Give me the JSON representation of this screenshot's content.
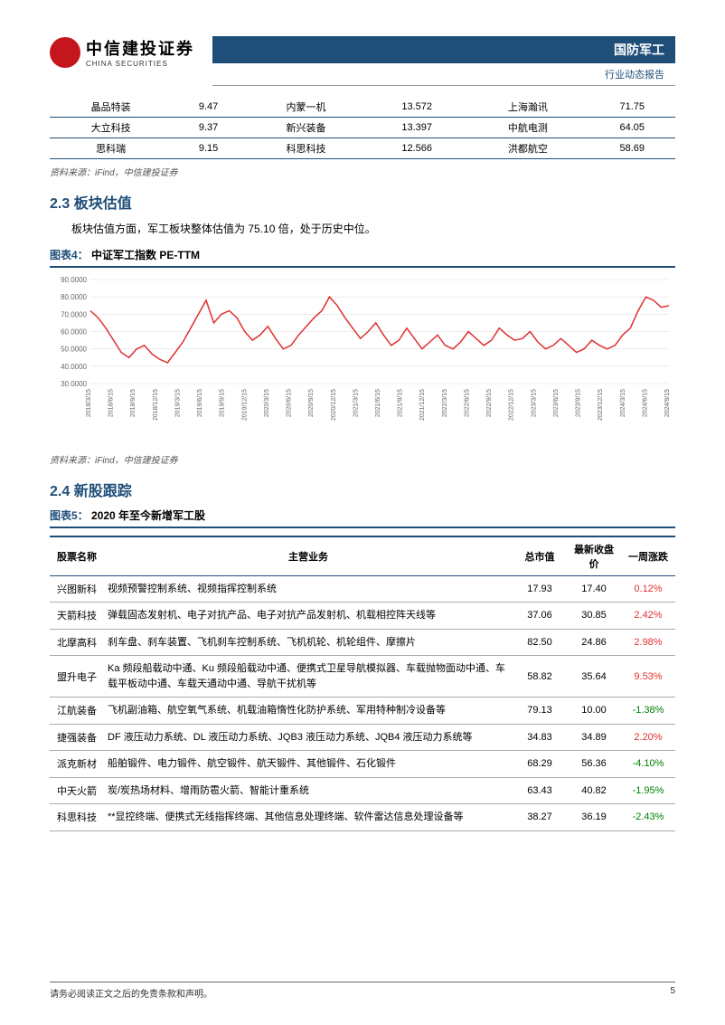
{
  "header": {
    "logo_cn": "中信建投证券",
    "logo_en": "CHINA SECURITIES",
    "logo_badge": "CITIC",
    "category": "国防军工",
    "subtitle": "行业动态报告"
  },
  "table_top": {
    "rows": [
      [
        "晶品特装",
        "9.47",
        "内蒙一机",
        "13.572",
        "上海瀚讯",
        "71.75"
      ],
      [
        "大立科技",
        "9.37",
        "新兴装备",
        "13.397",
        "中航电测",
        "64.05"
      ],
      [
        "思科瑞",
        "9.15",
        "科思科技",
        "12.566",
        "洪都航空",
        "58.69"
      ]
    ],
    "source": "资料来源：iFind，中信建投证券"
  },
  "section_23": {
    "heading": "2.3 板块估值",
    "paragraph": "板块估值方面，军工板块整体估值为 75.10 倍，处于历史中位。"
  },
  "chart4": {
    "title_prefix": "图表4：",
    "title": "中证军工指数 PE-TTM",
    "type": "line",
    "line_color": "#e03030",
    "line_width": 1.5,
    "background_color": "#ffffff",
    "grid_color": "#d9d9d9",
    "yaxis": {
      "min": 30,
      "max": 90,
      "ticks": [
        30,
        40,
        50,
        60,
        70,
        80,
        90
      ],
      "fontsize": 8,
      "color": "#666666"
    },
    "xaxis": {
      "labels": [
        "2018/3/15",
        "2018/6/15",
        "2018/9/15",
        "2018/12/15",
        "2019/3/15",
        "2019/6/15",
        "2019/9/15",
        "2019/12/15",
        "2020/3/15",
        "2020/6/15",
        "2020/9/15",
        "2020/12/15",
        "2021/3/15",
        "2021/6/15",
        "2021/9/15",
        "2021/12/15",
        "2022/3/15",
        "2022/6/15",
        "2022/9/15",
        "2022/12/15",
        "2023/3/15",
        "2023/6/15",
        "2023/9/15",
        "2023/12/15",
        "2024/3/15",
        "2024/6/15",
        "2024/9/15"
      ],
      "fontsize": 7,
      "color": "#666666",
      "rotation": -90
    },
    "values": [
      72,
      68,
      62,
      55,
      48,
      45,
      50,
      52,
      47,
      44,
      42,
      48,
      54,
      62,
      70,
      78,
      65,
      70,
      72,
      68,
      60,
      55,
      58,
      63,
      56,
      50,
      52,
      58,
      63,
      68,
      72,
      80,
      75,
      68,
      62,
      56,
      60,
      65,
      58,
      52,
      55,
      62,
      56,
      50,
      54,
      58,
      52,
      50,
      54,
      60,
      56,
      52,
      55,
      62,
      58,
      55,
      56,
      60,
      54,
      50,
      52,
      56,
      52,
      48,
      50,
      55,
      52,
      50,
      52,
      58,
      62,
      72,
      80,
      78,
      74,
      75
    ],
    "source": "资料来源：iFind，中信建投证券"
  },
  "section_24": {
    "heading": "2.4 新股跟踪"
  },
  "chart5": {
    "title_prefix": "图表5：",
    "title": "2020 年至今新增军工股",
    "columns": [
      "股票名称",
      "主营业务",
      "总市值",
      "最新收盘价",
      "一周涨跌"
    ],
    "col_widths": [
      "60px",
      "auto",
      "60px",
      "70px",
      "60px"
    ],
    "rows": [
      {
        "name": "兴图新科",
        "biz": "视频预警控制系统、视频指挥控制系统",
        "cap": "17.93",
        "close": "17.40",
        "chg": "0.12%",
        "dir": "pos"
      },
      {
        "name": "天箭科技",
        "biz": "弹载固态发射机、电子对抗产品、电子对抗产品发射机、机载相控阵天线等",
        "cap": "37.06",
        "close": "30.85",
        "chg": "2.42%",
        "dir": "pos"
      },
      {
        "name": "北摩高科",
        "biz": "刹车盘、刹车装置、飞机刹车控制系统、飞机机轮、机轮组件、摩擦片",
        "cap": "82.50",
        "close": "24.86",
        "chg": "2.98%",
        "dir": "pos"
      },
      {
        "name": "盟升电子",
        "biz": "Ka 频段船载动中通、Ku 频段船载动中通、便携式卫星导航模拟器、车载抛物面动中通、车载平板动中通、车载天通动中通、导航干扰机等",
        "cap": "58.82",
        "close": "35.64",
        "chg": "9.53%",
        "dir": "pos"
      },
      {
        "name": "江航装备",
        "biz": "飞机副油箱、航空氧气系统、机载油箱惰性化防护系统、军用特种制冷设备等",
        "cap": "79.13",
        "close": "10.00",
        "chg": "-1.38%",
        "dir": "neg"
      },
      {
        "name": "捷强装备",
        "biz": "DF 液压动力系统、DL 液压动力系统、JQB3 液压动力系统、JQB4 液压动力系统等",
        "cap": "34.83",
        "close": "34.89",
        "chg": "2.20%",
        "dir": "pos"
      },
      {
        "name": "派克新材",
        "biz": "船舶锻件、电力锻件、航空锻件、航天锻件、其他锻件、石化锻件",
        "cap": "68.29",
        "close": "56.36",
        "chg": "-4.10%",
        "dir": "neg"
      },
      {
        "name": "中天火箭",
        "biz": "炭/炭热场材料、增雨防雹火箭、智能计重系统",
        "cap": "63.43",
        "close": "40.82",
        "chg": "-1.95%",
        "dir": "neg"
      },
      {
        "name": "科思科技",
        "biz": "**显控终端、便携式无线指挥终端、其他信息处理终端、软件雷达信息处理设备等",
        "cap": "38.27",
        "close": "36.19",
        "chg": "-2.43%",
        "dir": "neg"
      }
    ]
  },
  "footer": {
    "disclaimer": "请务必阅读正文之后的免责条款和声明。",
    "page": "5"
  }
}
